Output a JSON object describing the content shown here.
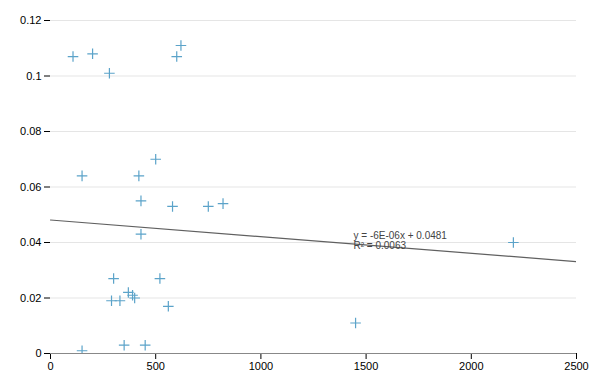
{
  "chart_data": {
    "type": "scatter",
    "series": [
      {
        "type": "scatter",
        "color": "#5BA3C9",
        "marker": "plus",
        "x": [
          150,
          200,
          280,
          290,
          300,
          330,
          350,
          370,
          390,
          400,
          420,
          430,
          450,
          500,
          520,
          560,
          620,
          750,
          820,
          1450,
          2200,
          150,
          430,
          107,
          600,
          580
        ],
        "values": [
          0.001,
          0.108,
          0.101,
          0.019,
          0.027,
          0.019,
          0.003,
          0.022,
          0.021,
          0.02,
          0.064,
          0.055,
          0.003,
          0.07,
          0.027,
          0.017,
          0.111,
          0.053,
          0.054,
          0.011,
          0.04,
          0.064,
          0.043,
          0.107,
          0.107,
          0.053
        ]
      },
      {
        "type": "line",
        "color": "#606060",
        "line_style": "solid",
        "x": [
          0,
          2500
        ],
        "values": [
          0.0481,
          0.0331
        ]
      }
    ],
    "annotations": [
      "y = -6E-06x + 0.0481",
      "R² = 0.0063"
    ],
    "xlim": [
      0,
      2500
    ],
    "xticks": [
      0,
      500,
      1000,
      1500,
      2000,
      2500
    ],
    "ylim": [
      0,
      0.12
    ],
    "yticks": [
      0,
      0.02,
      0.04,
      0.06,
      0.08,
      0.1,
      0.12
    ],
    "grid": "y"
  }
}
